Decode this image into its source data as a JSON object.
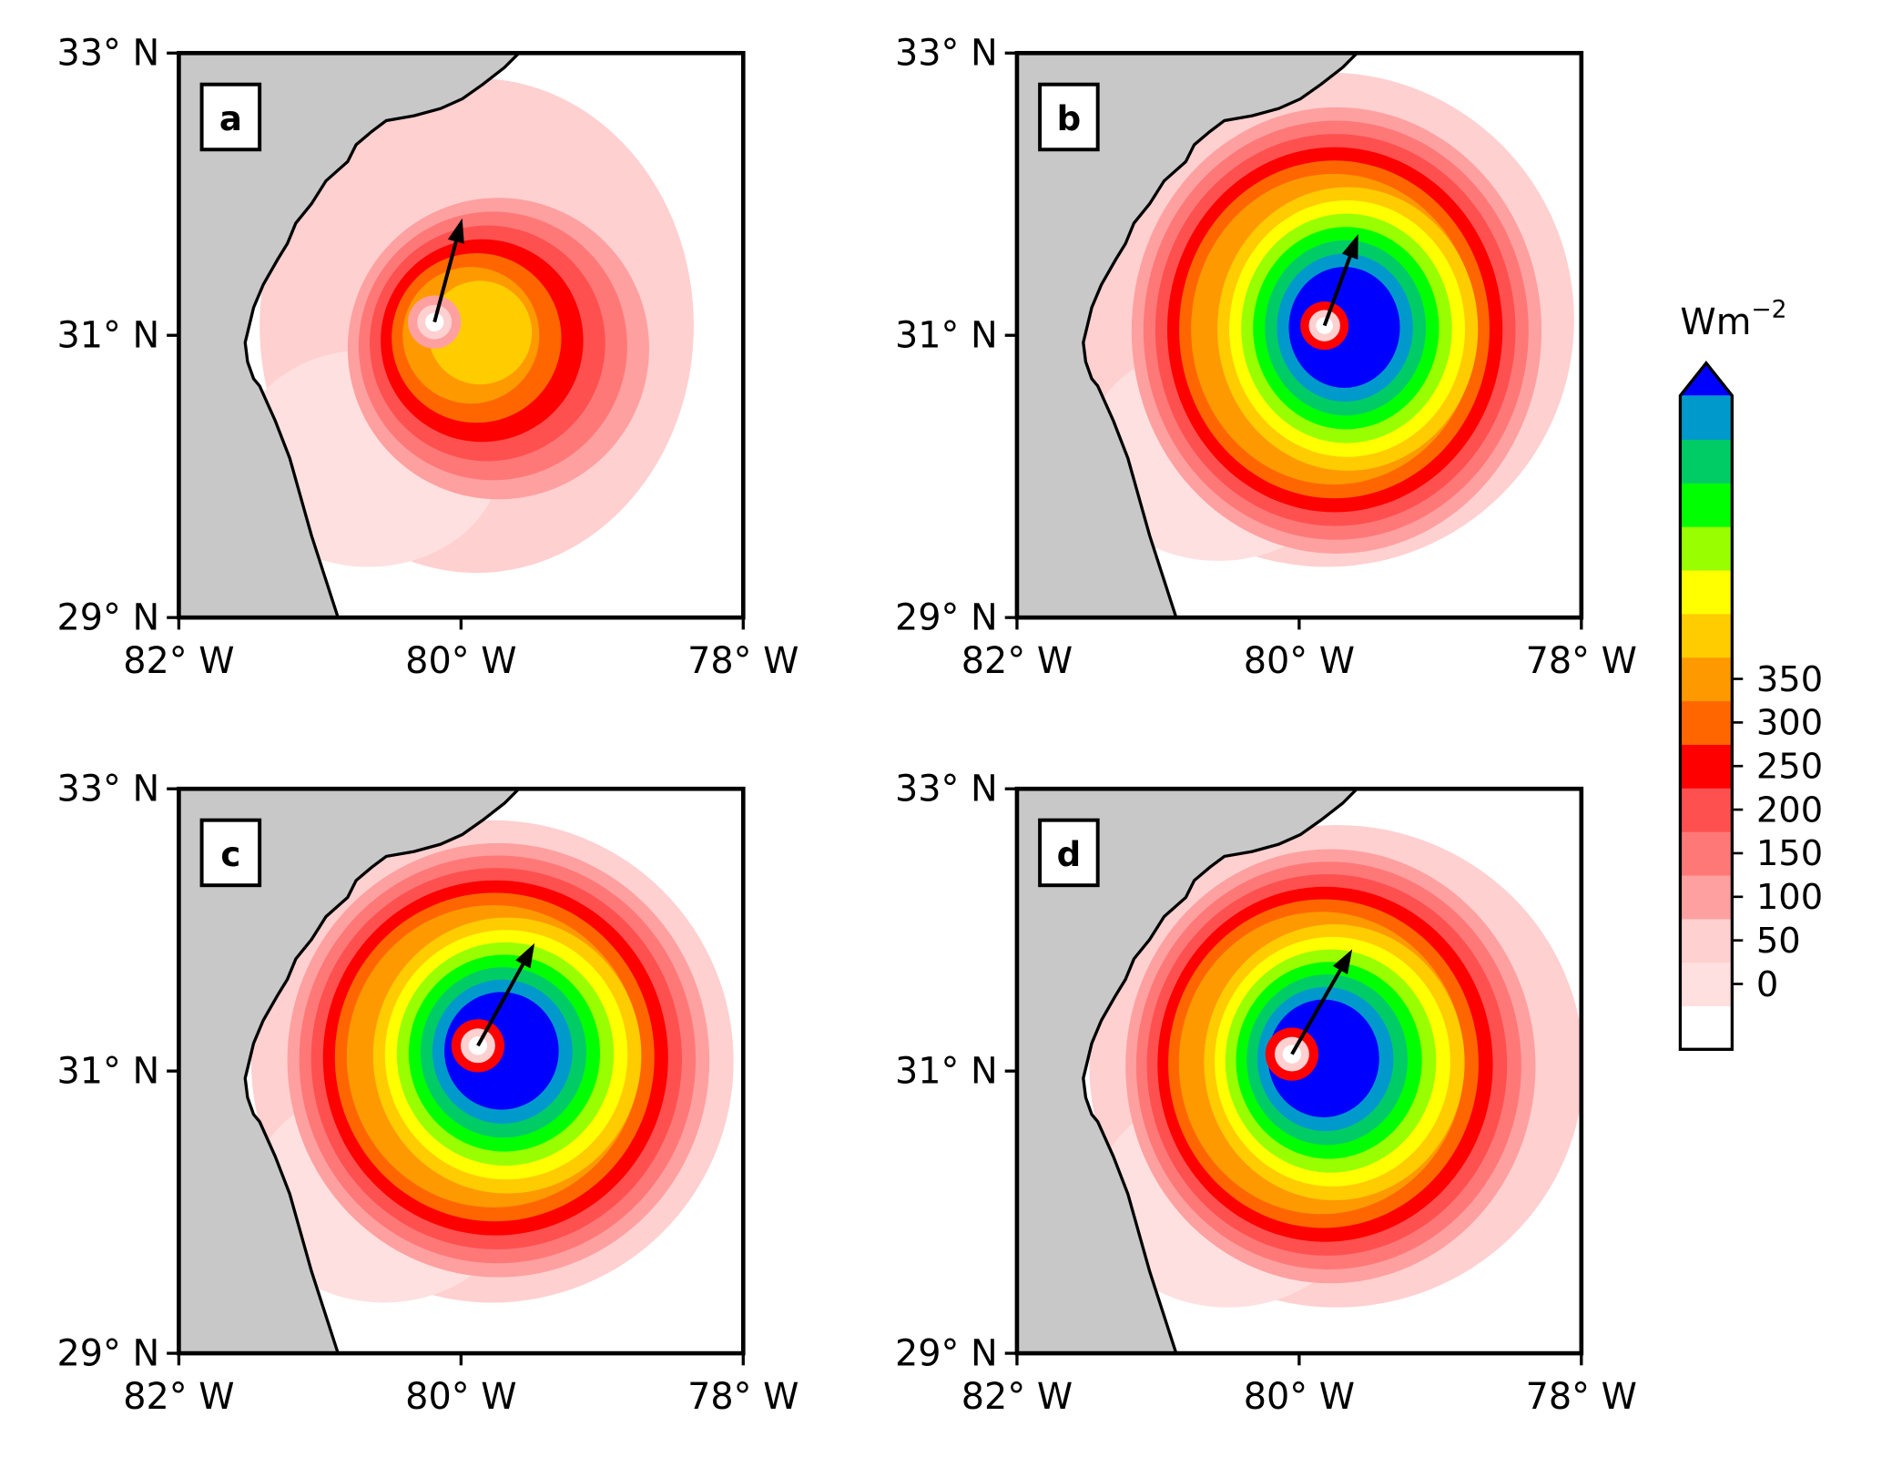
{
  "chart_data": {
    "type": "heatmap",
    "title": "",
    "panels": [
      {
        "label": "a",
        "peak_level_index": 9
      },
      {
        "label": "b",
        "peak_level_index": 15
      },
      {
        "label": "c",
        "peak_level_index": 15
      },
      {
        "label": "d",
        "peak_level_index": 15
      }
    ],
    "x_ticks": [
      "82° W",
      "80° W",
      "78° W"
    ],
    "y_ticks": [
      "33° N",
      "31° N",
      "29° N"
    ],
    "xlim": [
      -82,
      -78
    ],
    "ylim": [
      29,
      33
    ],
    "land_color": "#c8c8c8",
    "colorbar": {
      "label_base": "Wm",
      "label_exp": "−2",
      "ticks": [
        "350",
        "300",
        "250",
        "200",
        "150",
        "100",
        "50",
        "0"
      ],
      "tick_values": [
        350,
        300,
        250,
        200,
        150,
        100,
        50,
        0
      ],
      "extend": "max",
      "colors": [
        "#ffffff",
        "#ffe0e0",
        "#ffd0d0",
        "#ffa0a0",
        "#ff7878",
        "#ff5050",
        "#ff0000",
        "#ff6600",
        "#ff9900",
        "#ffcc00",
        "#ffff00",
        "#99ff00",
        "#00ff00",
        "#00cc66",
        "#0099cc",
        "#0000ff"
      ]
    }
  }
}
